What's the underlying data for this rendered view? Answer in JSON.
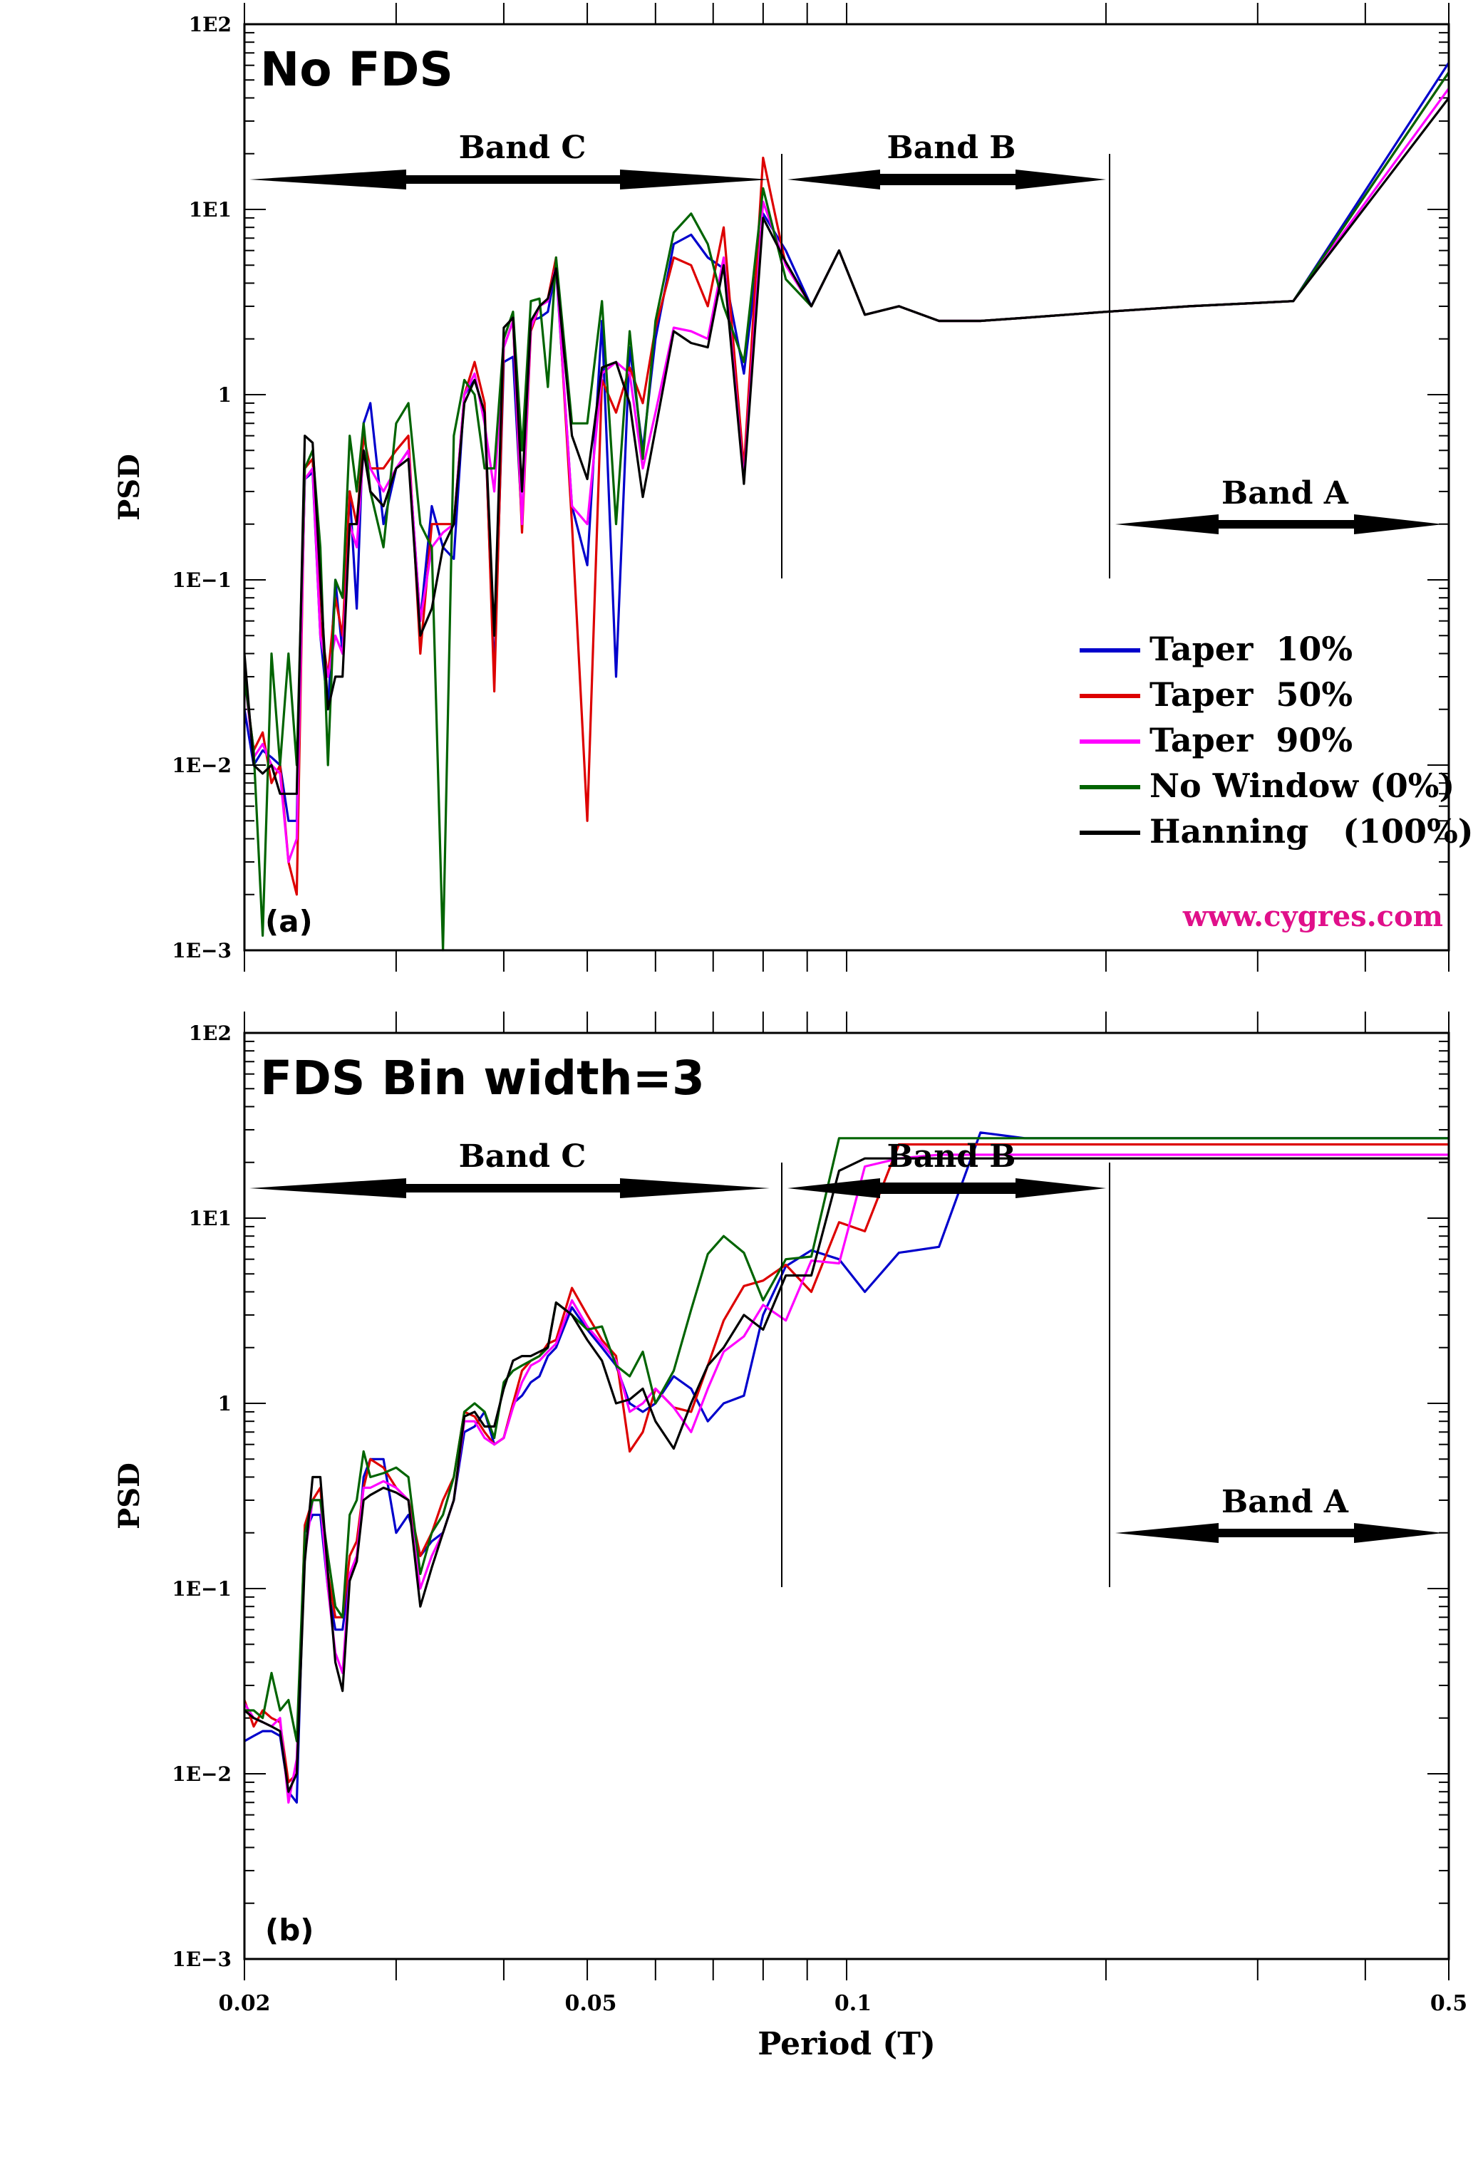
{
  "figure": {
    "xlabel": "Period (T)",
    "ylabel": "PSD",
    "x_tick_labels": [
      "0.02",
      "0.05",
      "0.1",
      "0.5"
    ],
    "y_tick_labels": [
      "1E−3",
      "1E−2",
      "1E−1",
      "1",
      "1E1",
      "1E2"
    ],
    "watermark": "www.cygres.com",
    "colors": {
      "taper10": "#0000cc",
      "taper50": "#dd0000",
      "taper90": "#ff00ff",
      "nowindow": "#006400",
      "hanning": "#000000",
      "watermark": "#e0108a"
    }
  },
  "legend": [
    {
      "label": "Taper  10%",
      "color": "#0000cc"
    },
    {
      "label": "Taper  50%",
      "color": "#dd0000"
    },
    {
      "label": "Taper  90%",
      "color": "#ff00ff"
    },
    {
      "label": "No Window (0%)",
      "color": "#006400"
    },
    {
      "label": "Hanning   (100%)",
      "color": "#000000"
    }
  ],
  "bands": {
    "band_c": "Band C",
    "band_b": "Band B",
    "band_a": "Band A",
    "boundaries_T": [
      0.083,
      0.2
    ]
  },
  "chart_data": [
    {
      "type": "line",
      "panel_label": "(a)",
      "title": "No FDS",
      "xlabel": "",
      "ylabel": "PSD",
      "xscale": "log",
      "yscale": "log",
      "xlim": [
        0.02,
        0.5
      ],
      "ylim": [
        0.001,
        100
      ],
      "x": [
        0.02,
        0.0205,
        0.021,
        0.0215,
        0.022,
        0.0225,
        0.023,
        0.0235,
        0.024,
        0.0245,
        0.025,
        0.0255,
        0.026,
        0.0265,
        0.027,
        0.0275,
        0.028,
        0.029,
        0.03,
        0.031,
        0.032,
        0.033,
        0.034,
        0.035,
        0.036,
        0.037,
        0.038,
        0.039,
        0.04,
        0.041,
        0.042,
        0.043,
        0.044,
        0.045,
        0.046,
        0.048,
        0.05,
        0.052,
        0.054,
        0.056,
        0.058,
        0.06,
        0.063,
        0.066,
        0.069,
        0.072,
        0.076,
        0.08,
        0.085,
        0.091,
        0.098,
        0.105,
        0.115,
        0.128,
        0.143,
        0.161,
        0.2,
        0.25,
        0.33,
        0.5
      ],
      "series": [
        {
          "name": "Taper  10%",
          "values": [
            0.02,
            0.01,
            0.012,
            0.011,
            0.01,
            0.005,
            0.005,
            0.35,
            0.38,
            0.05,
            0.02,
            0.1,
            0.04,
            0.3,
            0.07,
            0.7,
            0.9,
            0.2,
            0.4,
            0.5,
            0.06,
            0.25,
            0.15,
            0.13,
            1.0,
            1.2,
            0.8,
            0.03,
            1.5,
            1.6,
            0.2,
            2.5,
            2.6,
            2.8,
            4.8,
            0.25,
            0.12,
            2.5,
            0.03,
            1.8,
            0.5,
            2.0,
            6.5,
            7.3,
            5.5,
            4.8,
            1.3,
            9.5,
            6.0,
            3.0,
            6.0,
            2.7,
            3.0,
            2.5,
            2.5,
            2.6,
            2.8,
            3.0,
            3.2,
            62
          ]
        },
        {
          "name": "Taper  50%",
          "values": [
            0.03,
            0.012,
            0.015,
            0.008,
            0.01,
            0.003,
            0.002,
            0.4,
            0.45,
            0.06,
            0.03,
            0.08,
            0.05,
            0.3,
            0.2,
            0.6,
            0.4,
            0.4,
            0.5,
            0.6,
            0.04,
            0.2,
            0.2,
            0.2,
            1.0,
            1.5,
            0.9,
            0.025,
            1.8,
            2.5,
            0.18,
            2.2,
            3.0,
            3.3,
            5.5,
            0.2,
            0.005,
            1.2,
            0.8,
            1.4,
            0.9,
            2.3,
            5.5,
            5.0,
            3.0,
            8.0,
            0.4,
            19,
            5.0,
            3.0,
            6.0,
            2.7,
            3.0,
            2.5,
            2.5,
            2.6,
            2.8,
            3.0,
            3.2,
            55
          ]
        },
        {
          "name": "Taper  90%",
          "values": [
            0.03,
            0.011,
            0.013,
            0.01,
            0.009,
            0.003,
            0.004,
            0.35,
            0.4,
            0.05,
            0.03,
            0.05,
            0.04,
            0.2,
            0.15,
            0.5,
            0.4,
            0.3,
            0.4,
            0.5,
            0.06,
            0.15,
            0.18,
            0.2,
            1.0,
            1.3,
            0.7,
            0.3,
            1.8,
            2.5,
            0.2,
            2.3,
            3.0,
            3.2,
            5.0,
            0.25,
            0.2,
            1.3,
            1.5,
            1.3,
            0.4,
            0.8,
            2.3,
            2.2,
            2.0,
            5.5,
            0.35,
            11,
            5.0,
            3.0,
            6.0,
            2.7,
            3.0,
            2.5,
            2.5,
            2.6,
            2.8,
            3.0,
            3.2,
            45
          ]
        },
        {
          "name": "No Window (0%)",
          "values": [
            0.03,
            0.012,
            0.0012,
            0.04,
            0.01,
            0.04,
            0.01,
            0.4,
            0.5,
            0.15,
            0.01,
            0.1,
            0.08,
            0.6,
            0.3,
            0.7,
            0.3,
            0.15,
            0.7,
            0.9,
            0.2,
            0.15,
            0.001,
            0.6,
            1.2,
            1.0,
            0.4,
            0.4,
            2.0,
            2.8,
            0.5,
            3.2,
            3.3,
            1.1,
            5.5,
            0.7,
            0.7,
            3.2,
            0.2,
            2.2,
            0.45,
            2.5,
            7.5,
            9.5,
            6.5,
            3.0,
            1.5,
            13,
            4.2,
            3.0,
            6.0,
            2.7,
            3.0,
            2.5,
            2.5,
            2.6,
            2.8,
            3.0,
            3.2,
            55
          ]
        },
        {
          "name": "Hanning   (100%)",
          "values": [
            0.04,
            0.01,
            0.009,
            0.01,
            0.007,
            0.007,
            0.007,
            0.6,
            0.55,
            0.1,
            0.02,
            0.03,
            0.03,
            0.2,
            0.2,
            0.5,
            0.3,
            0.25,
            0.4,
            0.45,
            0.05,
            0.07,
            0.15,
            0.2,
            0.9,
            1.2,
            0.8,
            0.05,
            2.3,
            2.6,
            0.3,
            2.5,
            3.0,
            3.3,
            4.8,
            0.6,
            0.35,
            1.4,
            1.5,
            0.9,
            0.28,
            0.65,
            2.2,
            1.9,
            1.8,
            5.0,
            0.33,
            9.0,
            5.2,
            3.0,
            6.0,
            2.7,
            3.0,
            2.5,
            2.5,
            2.6,
            2.8,
            3.0,
            3.2,
            40
          ]
        }
      ]
    },
    {
      "type": "line",
      "panel_label": "(b)",
      "title": "FDS Bin width=3",
      "xlabel": "Period (T)",
      "ylabel": "PSD",
      "xscale": "log",
      "yscale": "log",
      "xlim": [
        0.02,
        0.5
      ],
      "ylim": [
        0.001,
        100
      ],
      "x": [
        0.02,
        0.0205,
        0.021,
        0.0215,
        0.022,
        0.0225,
        0.023,
        0.0235,
        0.024,
        0.0245,
        0.025,
        0.0255,
        0.026,
        0.0265,
        0.027,
        0.0275,
        0.028,
        0.029,
        0.03,
        0.031,
        0.032,
        0.033,
        0.034,
        0.035,
        0.036,
        0.037,
        0.038,
        0.039,
        0.04,
        0.041,
        0.042,
        0.043,
        0.044,
        0.045,
        0.046,
        0.048,
        0.05,
        0.052,
        0.054,
        0.056,
        0.058,
        0.06,
        0.063,
        0.066,
        0.069,
        0.072,
        0.076,
        0.08,
        0.085,
        0.091,
        0.098,
        0.105,
        0.115,
        0.128,
        0.143,
        0.161,
        0.2,
        0.25,
        0.33,
        0.5
      ],
      "series": [
        {
          "name": "Taper  10%",
          "values": [
            0.015,
            0.016,
            0.017,
            0.017,
            0.016,
            0.008,
            0.007,
            0.2,
            0.25,
            0.25,
            0.1,
            0.06,
            0.06,
            0.12,
            0.14,
            0.4,
            0.5,
            0.5,
            0.2,
            0.25,
            0.15,
            0.18,
            0.2,
            0.3,
            0.7,
            0.75,
            0.9,
            0.6,
            0.65,
            1.0,
            1.1,
            1.3,
            1.4,
            1.8,
            2.0,
            3.3,
            2.5,
            2.0,
            1.6,
            1.0,
            0.9,
            1.0,
            1.4,
            1.2,
            0.8,
            1.0,
            1.1,
            3.0,
            5.5,
            6.7,
            6.0,
            4.0,
            6.5,
            7.0,
            29,
            27,
            27,
            27,
            27,
            27
          ]
        },
        {
          "name": "Taper  50%",
          "values": [
            0.025,
            0.018,
            0.022,
            0.02,
            0.019,
            0.009,
            0.01,
            0.22,
            0.3,
            0.35,
            0.12,
            0.07,
            0.07,
            0.15,
            0.18,
            0.35,
            0.5,
            0.45,
            0.35,
            0.3,
            0.15,
            0.2,
            0.3,
            0.4,
            0.9,
            0.85,
            0.7,
            0.6,
            0.65,
            1.0,
            1.5,
            1.7,
            1.8,
            2.1,
            2.2,
            4.2,
            3.0,
            2.2,
            1.8,
            0.55,
            0.7,
            1.2,
            0.95,
            0.9,
            1.6,
            2.8,
            4.3,
            4.6,
            5.6,
            4.0,
            9.5,
            8.5,
            25,
            25,
            25,
            25,
            25,
            25,
            25,
            25
          ]
        },
        {
          "name": "Taper  90%",
          "values": [
            0.024,
            0.02,
            0.019,
            0.018,
            0.02,
            0.007,
            0.012,
            0.15,
            0.3,
            0.3,
            0.1,
            0.045,
            0.035,
            0.12,
            0.15,
            0.35,
            0.35,
            0.38,
            0.35,
            0.3,
            0.1,
            0.15,
            0.2,
            0.3,
            0.8,
            0.8,
            0.65,
            0.6,
            0.65,
            0.95,
            1.3,
            1.6,
            1.7,
            1.9,
            2.1,
            3.6,
            2.6,
            2.1,
            1.7,
            0.9,
            1.0,
            1.2,
            0.95,
            0.7,
            1.2,
            1.9,
            2.3,
            3.4,
            2.8,
            5.9,
            5.7,
            19,
            21,
            22,
            22,
            22,
            22,
            22,
            22,
            22
          ]
        },
        {
          "name": "No Window (0%)",
          "values": [
            0.022,
            0.022,
            0.02,
            0.035,
            0.022,
            0.025,
            0.015,
            0.2,
            0.3,
            0.3,
            0.15,
            0.08,
            0.07,
            0.25,
            0.3,
            0.55,
            0.4,
            0.42,
            0.45,
            0.4,
            0.12,
            0.2,
            0.25,
            0.4,
            0.9,
            1.0,
            0.9,
            0.65,
            1.3,
            1.5,
            1.6,
            1.7,
            1.8,
            2.0,
            3.5,
            3.0,
            2.5,
            2.6,
            1.6,
            1.4,
            1.9,
            1.0,
            1.5,
            3.2,
            6.4,
            8.0,
            6.5,
            3.6,
            6.0,
            6.2,
            27,
            27,
            27,
            27,
            27,
            27,
            27,
            27,
            27,
            27
          ]
        },
        {
          "name": "Hanning   (100%)",
          "values": [
            0.022,
            0.02,
            0.019,
            0.018,
            0.017,
            0.008,
            0.01,
            0.14,
            0.4,
            0.4,
            0.12,
            0.04,
            0.028,
            0.11,
            0.14,
            0.3,
            0.32,
            0.35,
            0.33,
            0.3,
            0.08,
            0.13,
            0.2,
            0.3,
            0.85,
            0.9,
            0.75,
            0.75,
            1.2,
            1.7,
            1.8,
            1.8,
            1.9,
            2.0,
            3.5,
            3.0,
            2.2,
            1.7,
            1.0,
            1.05,
            1.2,
            0.8,
            0.57,
            1.0,
            1.6,
            2.0,
            3.0,
            2.5,
            4.9,
            4.9,
            18,
            21,
            21,
            21,
            21,
            21,
            21,
            21,
            21,
            21
          ]
        }
      ]
    }
  ]
}
